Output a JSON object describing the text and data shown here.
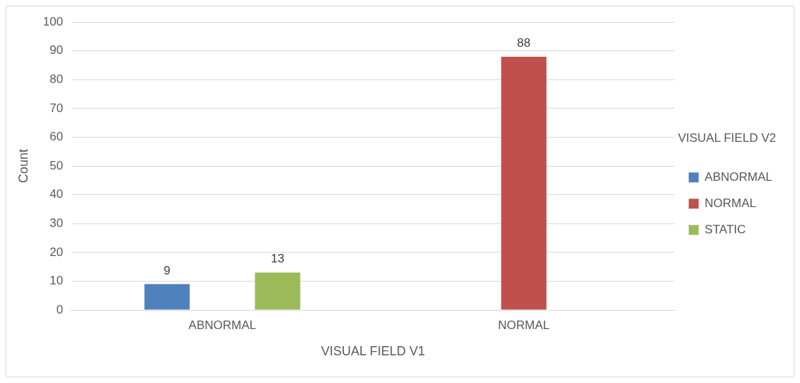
{
  "chart_data": {
    "type": "bar",
    "xlabel": "VISUAL FIELD V1",
    "ylabel": "Count",
    "legend_title": "VISUAL FIELD V2",
    "categories": [
      "ABNORMAL",
      "NORMAL"
    ],
    "series": [
      {
        "name": "ABNORMAL",
        "color": "#4f81bd",
        "values": [
          9,
          null
        ]
      },
      {
        "name": "NORMAL",
        "color": "#c0504d",
        "values": [
          null,
          88
        ]
      },
      {
        "name": "STATIC",
        "color": "#9bbb59",
        "values": [
          13,
          null
        ]
      }
    ],
    "ylim": [
      0,
      100
    ],
    "yticks": [
      0,
      10,
      20,
      30,
      40,
      50,
      60,
      70,
      80,
      90,
      100
    ],
    "grid": "y",
    "legend": "right",
    "data_labels": true
  }
}
